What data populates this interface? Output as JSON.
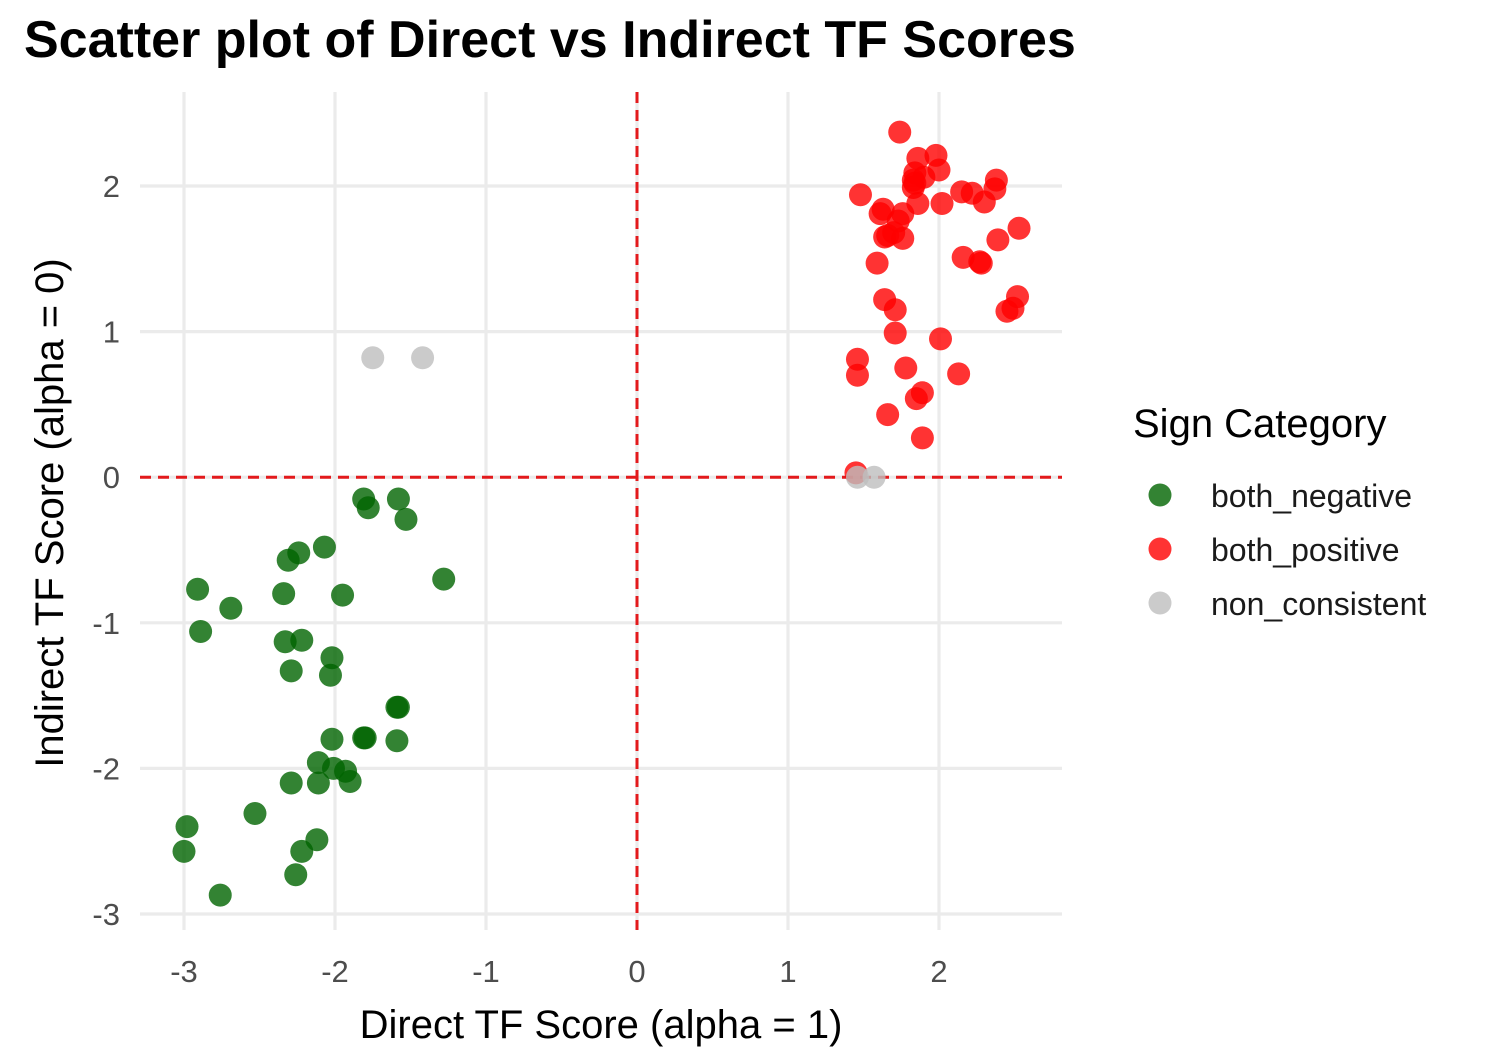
{
  "chart_data": {
    "type": "scatter",
    "title": "Scatter plot of Direct vs Indirect TF Scores",
    "xlabel": "Direct TF Score (alpha = 1)",
    "ylabel": "Indirect TF Score (alpha = 0)",
    "xlim": [
      -3.3,
      2.8
    ],
    "ylim": [
      -3.1,
      2.6
    ],
    "x_ticks": [
      -3,
      -2,
      -1,
      0,
      1,
      2
    ],
    "y_ticks": [
      -3,
      -2,
      -1,
      0,
      1,
      2
    ],
    "x_tick_labels": [
      "-3",
      "-2",
      "-1",
      "0",
      "1",
      "2"
    ],
    "y_tick_labels": [
      "-3",
      "-2",
      "-1",
      "0",
      "1",
      "2"
    ],
    "grid": true,
    "reference_lines": {
      "x": 0,
      "y": 0,
      "style": "dashed",
      "color": "#e31a1c"
    },
    "legend": {
      "title": "Sign Category",
      "position": "right"
    },
    "series": [
      {
        "name": "both_negative",
        "color": "#006400",
        "points": [
          [
            -2.91,
            -0.77
          ],
          [
            -2.89,
            -1.06
          ],
          [
            -2.69,
            -0.9
          ],
          [
            -2.31,
            -0.57
          ],
          [
            -2.24,
            -0.52
          ],
          [
            -2.07,
            -0.48
          ],
          [
            -2.34,
            -0.8
          ],
          [
            -1.95,
            -0.81
          ],
          [
            -1.81,
            -0.15
          ],
          [
            -1.78,
            -0.21
          ],
          [
            -1.58,
            -0.15
          ],
          [
            -1.53,
            -0.29
          ],
          [
            -1.28,
            -0.7
          ],
          [
            -2.33,
            -1.13
          ],
          [
            -2.22,
            -1.12
          ],
          [
            -2.29,
            -1.33
          ],
          [
            -2.02,
            -1.24
          ],
          [
            -2.03,
            -1.36
          ],
          [
            -1.59,
            -1.58
          ],
          [
            -1.58,
            -1.58
          ],
          [
            -2.02,
            -1.8
          ],
          [
            -1.8,
            -1.79
          ],
          [
            -1.81,
            -1.79
          ],
          [
            -1.59,
            -1.81
          ],
          [
            -2.11,
            -1.96
          ],
          [
            -2.01,
            -2.0
          ],
          [
            -1.93,
            -2.02
          ],
          [
            -1.9,
            -2.09
          ],
          [
            -2.29,
            -2.1
          ],
          [
            -2.11,
            -2.1
          ],
          [
            -2.53,
            -2.31
          ],
          [
            -2.98,
            -2.4
          ],
          [
            -3.0,
            -2.57
          ],
          [
            -2.12,
            -2.49
          ],
          [
            -2.22,
            -2.57
          ],
          [
            -2.26,
            -2.73
          ],
          [
            -2.76,
            -2.87
          ]
        ]
      },
      {
        "name": "both_positive",
        "color": "#ff0000",
        "points": [
          [
            1.74,
            2.37
          ],
          [
            1.98,
            2.21
          ],
          [
            1.86,
            2.19
          ],
          [
            2.0,
            2.11
          ],
          [
            1.84,
            2.09
          ],
          [
            1.9,
            2.06
          ],
          [
            1.83,
            2.04
          ],
          [
            1.84,
            2.02
          ],
          [
            1.83,
            1.99
          ],
          [
            2.38,
            2.04
          ],
          [
            2.37,
            1.98
          ],
          [
            2.15,
            1.96
          ],
          [
            2.22,
            1.95
          ],
          [
            1.48,
            1.94
          ],
          [
            2.3,
            1.89
          ],
          [
            1.86,
            1.88
          ],
          [
            2.02,
            1.88
          ],
          [
            1.63,
            1.84
          ],
          [
            1.61,
            1.81
          ],
          [
            1.76,
            1.81
          ],
          [
            1.73,
            1.76
          ],
          [
            1.7,
            1.68
          ],
          [
            1.66,
            1.66
          ],
          [
            1.64,
            1.65
          ],
          [
            2.53,
            1.71
          ],
          [
            2.39,
            1.63
          ],
          [
            1.76,
            1.64
          ],
          [
            2.16,
            1.51
          ],
          [
            2.27,
            1.48
          ],
          [
            2.28,
            1.47
          ],
          [
            1.59,
            1.47
          ],
          [
            1.64,
            1.22
          ],
          [
            1.71,
            1.15
          ],
          [
            2.52,
            1.24
          ],
          [
            2.45,
            1.14
          ],
          [
            2.49,
            1.16
          ],
          [
            1.71,
            0.99
          ],
          [
            2.01,
            0.95
          ],
          [
            1.46,
            0.81
          ],
          [
            1.46,
            0.7
          ],
          [
            1.78,
            0.75
          ],
          [
            2.13,
            0.71
          ],
          [
            1.89,
            0.58
          ],
          [
            1.85,
            0.54
          ],
          [
            1.66,
            0.43
          ],
          [
            1.89,
            0.27
          ],
          [
            1.45,
            0.03
          ]
        ]
      },
      {
        "name": "non_consistent",
        "color": "#bebebe",
        "points": [
          [
            -1.75,
            0.82
          ],
          [
            -1.42,
            0.82
          ],
          [
            1.46,
            0.0
          ],
          [
            1.57,
            0.0
          ]
        ]
      }
    ]
  }
}
